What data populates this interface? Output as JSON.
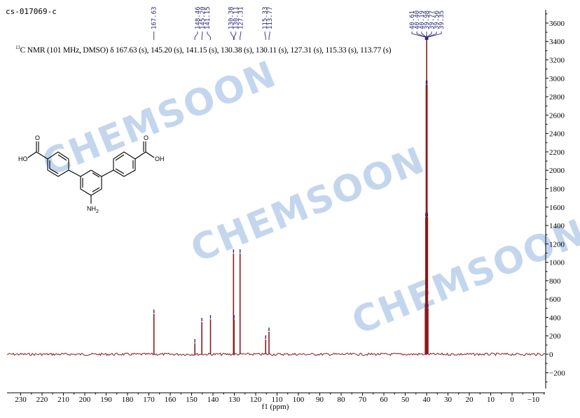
{
  "sample_id": "cs-017069-c",
  "description": {
    "nucleus_mass": "13",
    "text": "C NMR (101 MHz, DMSO) δ 167.63 (s), 145.20 (s), 141.15 (s), 130.38 (s), 130.11 (s), 127.31 (s), 115.33 (s), 113.77 (s)"
  },
  "watermark": "CHEMSOON",
  "structure": {
    "oh_left": "HO",
    "o_left": "O",
    "oh_right": "OH",
    "o_right": "O",
    "amine": "NH",
    "amine_sub": "2"
  },
  "chart_data": {
    "type": "line",
    "title": "",
    "xlabel": "f1 (ppm)",
    "ylabel": "",
    "xlim": [
      233,
      -15
    ],
    "ylim": [
      -380,
      3750
    ],
    "x_reversed": true,
    "x_ticks": [
      230,
      220,
      210,
      200,
      190,
      180,
      170,
      160,
      150,
      140,
      130,
      120,
      110,
      100,
      90,
      80,
      70,
      60,
      50,
      40,
      30,
      20,
      10,
      0,
      -10
    ],
    "y_ticks": [
      -200,
      0,
      200,
      400,
      600,
      800,
      1000,
      1200,
      1400,
      1600,
      1800,
      2000,
      2200,
      2400,
      2600,
      2800,
      3000,
      3200,
      3400,
      3600
    ],
    "peak_color": "#8b1a1a",
    "label_color": "#2a2a7a",
    "peaks": [
      {
        "ppm": 167.63,
        "intensity": 440
      },
      {
        "ppm": 148.46,
        "intensity": 120
      },
      {
        "ppm": 145.2,
        "intensity": 350
      },
      {
        "ppm": 141.15,
        "intensity": 380
      },
      {
        "ppm": 130.38,
        "intensity": 1095
      },
      {
        "ppm": 130.11,
        "intensity": 380
      },
      {
        "ppm": 127.31,
        "intensity": 1095
      },
      {
        "ppm": 115.33,
        "intensity": 160
      },
      {
        "ppm": 113.77,
        "intensity": 245
      },
      {
        "ppm": 40.61,
        "intensity": 500
      },
      {
        "ppm": 40.4,
        "intensity": 1490
      },
      {
        "ppm": 40.19,
        "intensity": 2930
      },
      {
        "ppm": 39.98,
        "intensity": 3420
      },
      {
        "ppm": 39.77,
        "intensity": 2930
      },
      {
        "ppm": 39.56,
        "intensity": 1490
      },
      {
        "ppm": 39.35,
        "intensity": 500
      }
    ],
    "label_groups": [
      [
        "167.63"
      ],
      [
        "148.46",
        "145.20",
        "141.15"
      ],
      [
        "130.38",
        "130.11",
        "127.31"
      ],
      [
        "115.33",
        "113.77"
      ],
      [
        "40.61",
        "40.40",
        "40.19",
        "39.98",
        "39.77",
        "39.56",
        "39.35"
      ]
    ]
  }
}
